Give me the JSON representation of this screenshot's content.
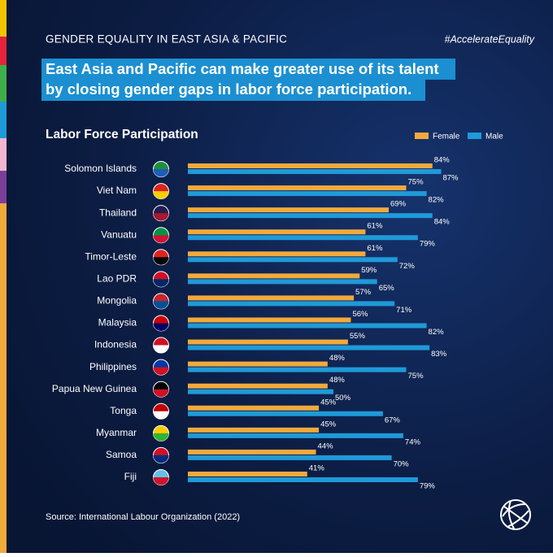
{
  "chart_data": {
    "type": "bar",
    "header": "GENDER EQUALITY IN EAST ASIA & PACIFIC",
    "hashtag": "#AccelerateEquality",
    "headline": [
      "East Asia and Pacific can make greater use of its talent",
      "by closing gender gaps in labor force participation."
    ],
    "title": "Labor Force Participation",
    "source": "Source: International Labour Organization (2022)",
    "categories": [
      "Solomon Islands",
      "Viet Nam",
      "Thailand",
      "Vanuatu",
      "Timor-Leste",
      "Lao PDR",
      "Mongolia",
      "Malaysia",
      "Indonesia",
      "Philippines",
      "Papua New Guinea",
      "Tonga",
      "Myanmar",
      "Samoa",
      "Fiji"
    ],
    "series": [
      {
        "name": "Female",
        "color": "#f2a93b",
        "values": [
          84,
          75,
          69,
          61,
          61,
          59,
          57,
          56,
          55,
          48,
          48,
          45,
          45,
          44,
          41
        ],
        "value_labels": [
          "84%",
          "75%",
          "69%",
          "61%",
          "61%",
          "59%",
          "57%",
          "56%",
          "55%",
          "48%",
          "48%",
          "45%",
          "45%",
          "44%",
          "41%"
        ]
      },
      {
        "name": "Male",
        "color": "#1f9ad8",
        "values": [
          87,
          82,
          84,
          79,
          72,
          65,
          71,
          82,
          83,
          75,
          50,
          67,
          74,
          70,
          79
        ],
        "value_labels": [
          "87%",
          "82%",
          "84%",
          "79%",
          "72%",
          "65%",
          "71%",
          "82%",
          "83%",
          "75%",
          "50%",
          "67%",
          "74%",
          "70%",
          "79%"
        ]
      }
    ],
    "legend": "top-right"
  }
}
